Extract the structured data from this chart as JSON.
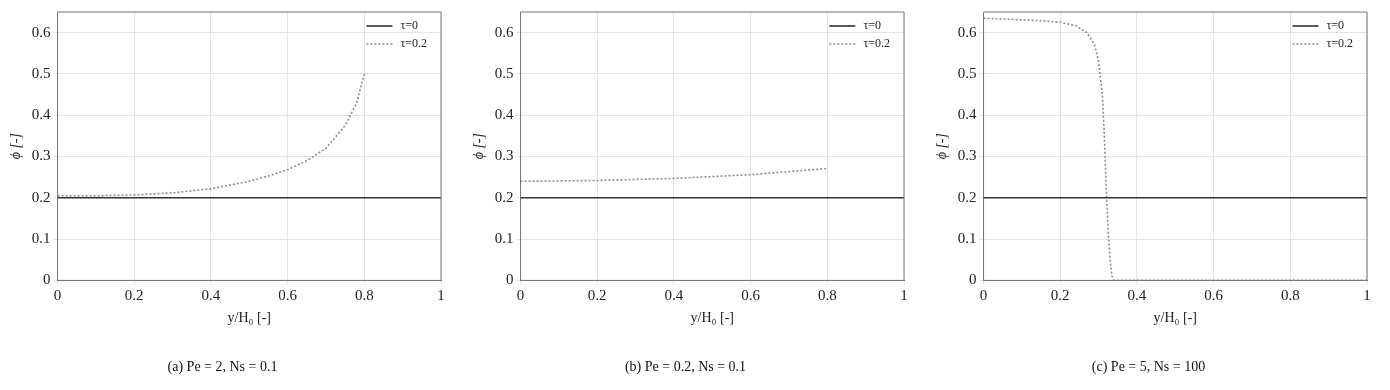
{
  "chart_data": [
    {
      "type": "line",
      "title": "(a) Pe = 2, Ns = 0.1",
      "xlabel": "y/H₀ [-]",
      "ylabel": "ϕ [-]",
      "xlim": [
        0,
        1
      ],
      "xticks": [
        0,
        0.2,
        0.4,
        0.6,
        0.8,
        1
      ],
      "ylim": [
        0,
        0.65
      ],
      "yticks": [
        0,
        0.1,
        0.2,
        0.3,
        0.4,
        0.5,
        0.6
      ],
      "grid": true,
      "legend": "top right",
      "marker": "none",
      "series": [
        {
          "name": "τ=0",
          "color": "#333333",
          "line_style": "solid",
          "x": [
            0,
            1
          ],
          "values": [
            0.2,
            0.2
          ]
        },
        {
          "name": "τ=0.2",
          "color": "#8c8c8c",
          "line_style": "dotted",
          "x": [
            0,
            0.1,
            0.2,
            0.3,
            0.4,
            0.5,
            0.55,
            0.6,
            0.65,
            0.7,
            0.75,
            0.78,
            0.8
          ],
          "values": [
            0.205,
            0.205,
            0.207,
            0.212,
            0.222,
            0.24,
            0.253,
            0.268,
            0.29,
            0.32,
            0.375,
            0.43,
            0.5
          ]
        }
      ]
    },
    {
      "type": "line",
      "title": "(b) Pe = 0.2, Ns = 0.1",
      "xlabel": "y/H₀ [-]",
      "ylabel": "ϕ [-]",
      "xlim": [
        0,
        1
      ],
      "xticks": [
        0,
        0.2,
        0.4,
        0.6,
        0.8,
        1
      ],
      "ylim": [
        0,
        0.65
      ],
      "yticks": [
        0,
        0.1,
        0.2,
        0.3,
        0.4,
        0.5,
        0.6
      ],
      "grid": true,
      "legend": "top right",
      "marker": "none",
      "series": [
        {
          "name": "τ=0",
          "color": "#333333",
          "line_style": "solid",
          "x": [
            0,
            1
          ],
          "values": [
            0.2,
            0.2
          ]
        },
        {
          "name": "τ=0.2",
          "color": "#8c8c8c",
          "line_style": "dotted",
          "x": [
            0,
            0.2,
            0.4,
            0.6,
            0.8
          ],
          "values": [
            0.24,
            0.242,
            0.247,
            0.256,
            0.271
          ]
        }
      ]
    },
    {
      "type": "line",
      "title": "(c) Pe = 5, Ns = 100",
      "xlabel": "y/H₀ [-]",
      "ylabel": "ϕ [-]",
      "xlim": [
        0,
        1
      ],
      "xticks": [
        0,
        0.2,
        0.4,
        0.6,
        0.8,
        1
      ],
      "ylim": [
        0,
        0.65
      ],
      "yticks": [
        0,
        0.1,
        0.2,
        0.3,
        0.4,
        0.5,
        0.6
      ],
      "grid": true,
      "legend": "top right",
      "marker": "none",
      "series": [
        {
          "name": "τ=0",
          "color": "#333333",
          "line_style": "solid",
          "x": [
            0,
            1
          ],
          "values": [
            0.2,
            0.2
          ]
        },
        {
          "name": "τ=0.2",
          "color": "#8c8c8c",
          "line_style": "dotted",
          "x": [
            0,
            0.05,
            0.1,
            0.15,
            0.2,
            0.24,
            0.27,
            0.29,
            0.3,
            0.31,
            0.315,
            0.32,
            0.325,
            0.33,
            0.335,
            0.34,
            0.4,
            0.6,
            0.8,
            1
          ],
          "values": [
            0.635,
            0.633,
            0.631,
            0.629,
            0.625,
            0.617,
            0.6,
            0.57,
            0.53,
            0.45,
            0.35,
            0.22,
            0.12,
            0.05,
            0.01,
            0,
            0,
            0,
            0,
            0
          ]
        }
      ]
    }
  ]
}
